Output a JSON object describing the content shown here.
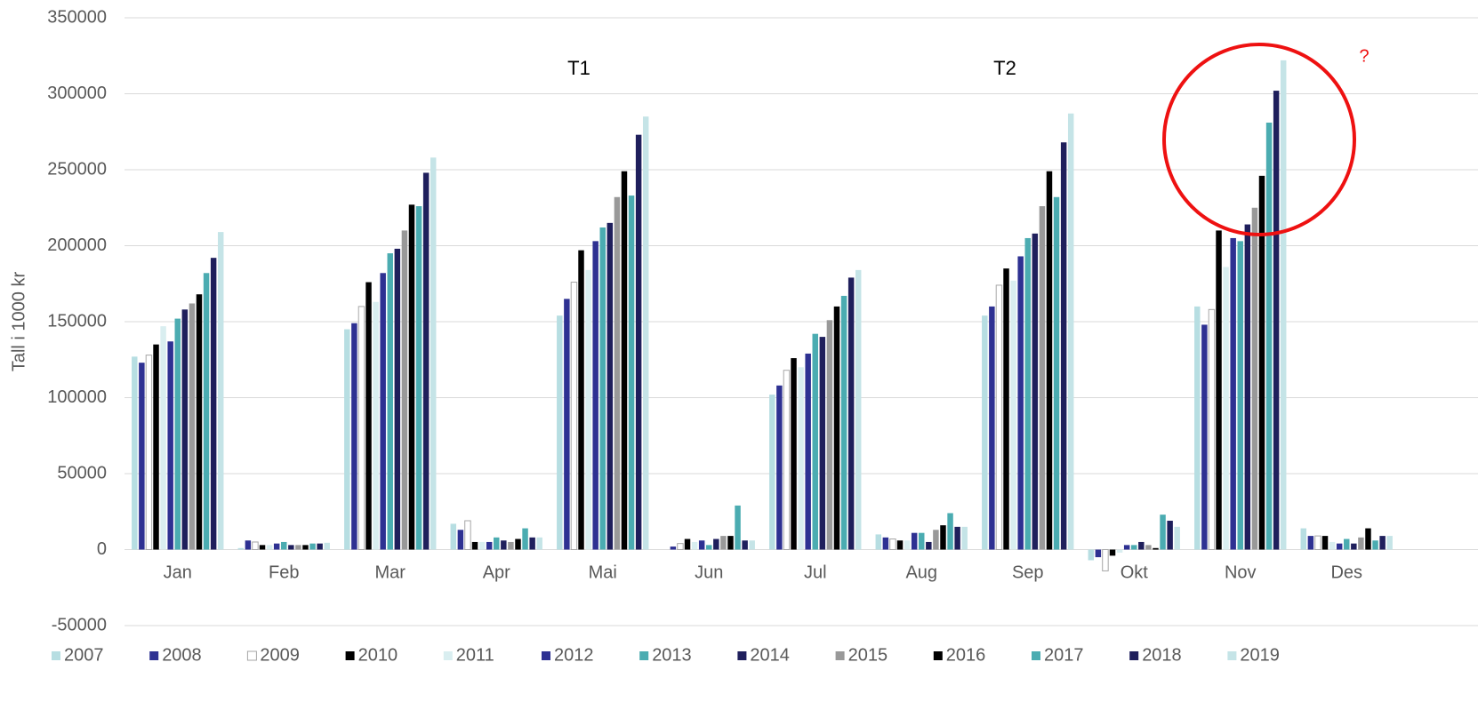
{
  "chart_data": {
    "type": "bar",
    "y_label": "Tall i 1000 kr",
    "annotations": [
      "T1",
      "T2",
      "?"
    ],
    "categories": [
      "Jan",
      "Feb",
      "Mar",
      "Apr",
      "Mai",
      "Jun",
      "Jul",
      "Aug",
      "Sep",
      "Okt",
      "Nov",
      "Des"
    ],
    "ylim": [
      -50000,
      350000
    ],
    "yticks": [
      -50000,
      0,
      50000,
      100000,
      150000,
      200000,
      250000,
      300000,
      350000
    ],
    "grid": true,
    "legend": "bottom",
    "series": [
      {
        "name": "2007",
        "color": "#b7dee2",
        "values": [
          127000,
          1000,
          145000,
          17000,
          154000,
          0,
          102000,
          10000,
          154000,
          -7000,
          160000,
          14000
        ]
      },
      {
        "name": "2008",
        "color": "#2e3192",
        "values": [
          123000,
          6000,
          149000,
          13000,
          165000,
          2000,
          108000,
          8000,
          160000,
          -5000,
          148000,
          9000
        ]
      },
      {
        "name": "2009",
        "color": "#ffffff",
        "edgecolor": "#a6a6a6",
        "values": [
          128000,
          5000,
          160000,
          19000,
          176000,
          4000,
          118000,
          7000,
          174000,
          -14000,
          158000,
          9000
        ]
      },
      {
        "name": "2010",
        "color": "#000000",
        "values": [
          135000,
          3000,
          176000,
          5000,
          197000,
          7000,
          126000,
          6000,
          185000,
          -4000,
          210000,
          9000
        ]
      },
      {
        "name": "2011",
        "color": "#d9eef0",
        "values": [
          147000,
          3000,
          163000,
          5000,
          184000,
          5000,
          120000,
          6000,
          177000,
          -2000,
          186000,
          5000
        ]
      },
      {
        "name": "2012",
        "color": "#2e3192",
        "values": [
          137000,
          4000,
          182000,
          5000,
          203000,
          6000,
          129000,
          11000,
          193000,
          3000,
          205000,
          4000
        ]
      },
      {
        "name": "2013",
        "color": "#4bacb1",
        "values": [
          152000,
          5000,
          195000,
          8000,
          212000,
          3000,
          142000,
          11000,
          205000,
          3000,
          203000,
          7000
        ]
      },
      {
        "name": "2014",
        "color": "#1f1f5c",
        "values": [
          158000,
          3000,
          198000,
          6000,
          215000,
          7000,
          140000,
          5000,
          208000,
          5000,
          214000,
          4000
        ]
      },
      {
        "name": "2015",
        "color": "#999999",
        "values": [
          162000,
          3000,
          210000,
          5000,
          232000,
          9000,
          151000,
          13000,
          226000,
          3000,
          225000,
          8000
        ]
      },
      {
        "name": "2016",
        "color": "#000000",
        "values": [
          168000,
          3000,
          227000,
          7000,
          249000,
          9000,
          160000,
          16000,
          249000,
          1000,
          246000,
          14000
        ]
      },
      {
        "name": "2017",
        "color": "#4bacb1",
        "values": [
          182000,
          4000,
          226000,
          14000,
          233000,
          29000,
          167000,
          24000,
          232000,
          23000,
          281000,
          6000
        ]
      },
      {
        "name": "2018",
        "color": "#1f1f5c",
        "values": [
          192000,
          4000,
          248000,
          8000,
          273000,
          6000,
          179000,
          15000,
          268000,
          19000,
          302000,
          9000
        ]
      },
      {
        "name": "2019",
        "color": "#c5e4e7",
        "values": [
          209000,
          4500,
          258000,
          8000,
          285000,
          6000,
          184000,
          15000,
          287000,
          15000,
          322000,
          9000
        ]
      }
    ]
  }
}
